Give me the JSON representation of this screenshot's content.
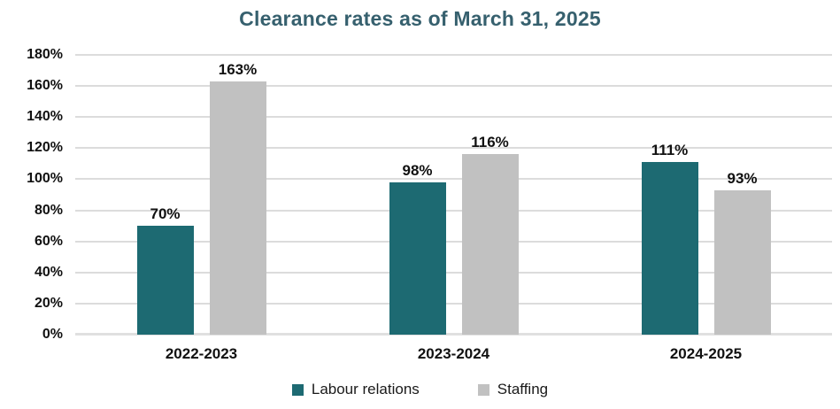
{
  "title": "Clearance rates as of March 31, 2025",
  "colors": {
    "labour_relations": "#1d6a72",
    "staffing": "#c1c1c1",
    "title_text": "#36606e",
    "grid_line": "#dcdcdc",
    "baseline": "#e0e0e0",
    "axis_text": "#111111"
  },
  "chart_data": {
    "type": "bar",
    "title": "Clearance rates as of March 31, 2025",
    "categories": [
      "2022-2023",
      "2023-2024",
      "2024-2025"
    ],
    "series": [
      {
        "name": "Labour relations",
        "color": "#1d6a72",
        "values": [
          70,
          98,
          111
        ],
        "data_labels": [
          "70%",
          "98%",
          "111%"
        ]
      },
      {
        "name": "Staffing",
        "color": "#c1c1c1",
        "values": [
          163,
          116,
          93
        ],
        "data_labels": [
          "163%",
          "116%",
          "93%"
        ]
      }
    ],
    "xlabel": "",
    "ylabel": "",
    "ylim": [
      0,
      180
    ],
    "ytick_step": 20,
    "ytick_labels": [
      "0%",
      "20%",
      "40%",
      "60%",
      "80%",
      "100%",
      "120%",
      "140%",
      "160%",
      "180%"
    ],
    "grid": true,
    "legend_position": "bottom"
  }
}
